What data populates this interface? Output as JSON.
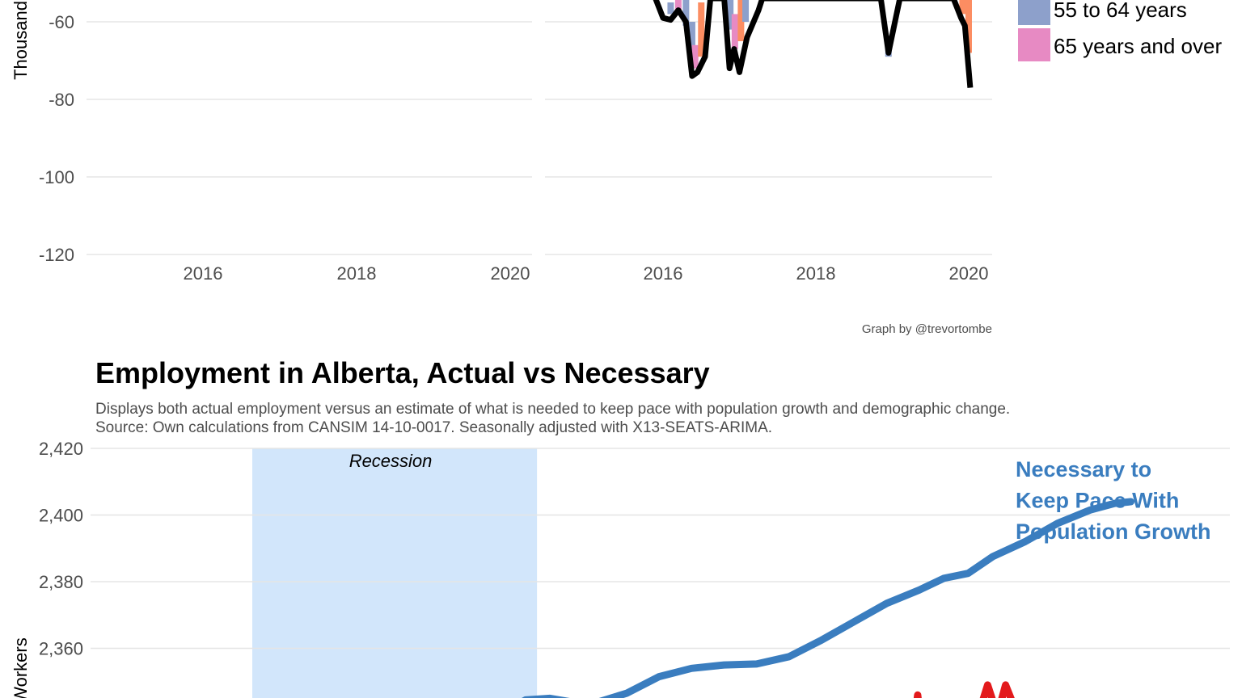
{
  "colors": {
    "grid": "#e5e5e5",
    "bar_55_64": "#8da0cb",
    "bar_65_over": "#e78ac3",
    "bar_orange": "#fc8d62",
    "total_line": "#000000",
    "necessary_line": "#3a7dbf",
    "actual_line": "#e31a1c",
    "recession_fill": "#d2e6fb"
  },
  "chart_data": [
    {
      "type": "area",
      "title": "",
      "ylabel": "Thousand",
      "ylim": [
        -120,
        -50
      ],
      "yticks": [
        {
          "value": -60,
          "label": "-60"
        },
        {
          "value": -80,
          "label": "-80"
        },
        {
          "value": -100,
          "label": "-100"
        },
        {
          "value": -120,
          "label": "-120"
        }
      ],
      "panels": [
        {
          "name": "left",
          "xticks": [
            {
              "value": 2016,
              "label": "2016"
            },
            {
              "value": 2018,
              "label": "2018"
            },
            {
              "value": 2020,
              "label": "2020"
            }
          ],
          "total_line": []
        },
        {
          "name": "right",
          "xticks": [
            {
              "value": 2016,
              "label": "2016"
            },
            {
              "value": 2018,
              "label": "2018"
            },
            {
              "value": 2020,
              "label": "2020"
            }
          ],
          "total_line": [
            {
              "x": 2015.9,
              "y": -50
            },
            {
              "x": 2016.0,
              "y": -59
            },
            {
              "x": 2016.1,
              "y": -59.5
            },
            {
              "x": 2016.2,
              "y": -57
            },
            {
              "x": 2016.3,
              "y": -60
            },
            {
              "x": 2016.38,
              "y": -74
            },
            {
              "x": 2016.45,
              "y": -73
            },
            {
              "x": 2016.55,
              "y": -69
            },
            {
              "x": 2016.62,
              "y": -50
            },
            {
              "x": 2016.8,
              "y": -50
            },
            {
              "x": 2016.87,
              "y": -72
            },
            {
              "x": 2016.93,
              "y": -67
            },
            {
              "x": 2017.0,
              "y": -73
            },
            {
              "x": 2017.1,
              "y": -64
            },
            {
              "x": 2017.25,
              "y": -57
            },
            {
              "x": 2017.3,
              "y": -50
            },
            {
              "x": 2018.85,
              "y": -50
            },
            {
              "x": 2018.95,
              "y": -68
            },
            {
              "x": 2019.1,
              "y": -50
            },
            {
              "x": 2019.8,
              "y": -50
            },
            {
              "x": 2019.9,
              "y": -59
            },
            {
              "x": 2019.95,
              "y": -61
            },
            {
              "x": 2020.02,
              "y": -77
            }
          ],
          "stacked_bars": [
            {
              "x": 2016.1,
              "y_top": -55,
              "y_bottom": -58,
              "series": "55 to 64 years"
            },
            {
              "x": 2016.2,
              "y_top": -54,
              "y_bottom": -57,
              "series": "65 years and over"
            },
            {
              "x": 2016.3,
              "y_top": -53,
              "y_bottom": -61,
              "series": "55 to 64 years"
            },
            {
              "x": 2016.38,
              "y_top": -60,
              "y_bottom": -70,
              "series": "55 to 64 years"
            },
            {
              "x": 2016.42,
              "y_top": -66,
              "y_bottom": -72,
              "series": "65 years and over"
            },
            {
              "x": 2016.5,
              "y_top": -55,
              "y_bottom": -69,
              "series": "orange"
            },
            {
              "x": 2016.88,
              "y_top": -52,
              "y_bottom": -62,
              "series": "55 to 64 years"
            },
            {
              "x": 2016.94,
              "y_top": -58,
              "y_bottom": -67,
              "series": "65 years and over"
            },
            {
              "x": 2017.02,
              "y_top": -54,
              "y_bottom": -65,
              "series": "orange"
            },
            {
              "x": 2017.08,
              "y_top": -52,
              "y_bottom": -60,
              "series": "55 to 64 years"
            },
            {
              "x": 2018.95,
              "y_top": -64,
              "y_bottom": -69,
              "series": "55 to 64 years"
            },
            {
              "x": 2019.92,
              "y_top": -52,
              "y_bottom": -58,
              "series": "orange"
            },
            {
              "x": 2020.0,
              "y_top": -54,
              "y_bottom": -68,
              "series": "orange"
            }
          ]
        }
      ],
      "legend": [
        {
          "label": "55 to 64 years",
          "color": "#8da0cb"
        },
        {
          "label": "65 years and over",
          "color": "#e78ac3"
        }
      ],
      "caption": "Graph by @trevortombe"
    },
    {
      "type": "line",
      "title": "Employment in Alberta, Actual vs Necessary",
      "subtitle_lines": [
        "Displays both actual employment versus an estimate of what is needed to keep pace with population growth and demographic change.",
        "Source: Own calculations from CANSIM 14-10-0017. Seasonally adjusted with X13-SEATS-ARIMA."
      ],
      "ylabel": "Workers",
      "ylim": [
        2340,
        2420
      ],
      "yticks": [
        {
          "value": 2420,
          "label": "2,420"
        },
        {
          "value": 2400,
          "label": "2,400"
        },
        {
          "value": 2380,
          "label": "2,380"
        },
        {
          "value": 2360,
          "label": "2,360"
        }
      ],
      "recession": {
        "label": "Recession",
        "x_start": 2015.0,
        "x_end": 2016.75
      },
      "series": [
        {
          "name": "Necessary to Keep Pace With Population Growth",
          "label_lines": [
            "Necessary to",
            "Keep Pace With",
            "Population Growth"
          ],
          "points": [
            {
              "x": 2016.4,
              "y": 2339
            },
            {
              "x": 2016.55,
              "y": 2341
            },
            {
              "x": 2016.68,
              "y": 2344.5
            },
            {
              "x": 2016.83,
              "y": 2345
            },
            {
              "x": 2016.95,
              "y": 2344
            },
            {
              "x": 2017.1,
              "y": 2343.5
            },
            {
              "x": 2017.3,
              "y": 2346.5
            },
            {
              "x": 2017.5,
              "y": 2351.5
            },
            {
              "x": 2017.7,
              "y": 2354
            },
            {
              "x": 2017.9,
              "y": 2355
            },
            {
              "x": 2018.1,
              "y": 2355.3
            },
            {
              "x": 2018.3,
              "y": 2357.5
            },
            {
              "x": 2018.5,
              "y": 2362.5
            },
            {
              "x": 2018.7,
              "y": 2368
            },
            {
              "x": 2018.9,
              "y": 2373.5
            },
            {
              "x": 2019.1,
              "y": 2377.5
            },
            {
              "x": 2019.25,
              "y": 2381
            },
            {
              "x": 2019.4,
              "y": 2382.5
            },
            {
              "x": 2019.55,
              "y": 2387.5
            },
            {
              "x": 2019.75,
              "y": 2392
            },
            {
              "x": 2019.95,
              "y": 2397.5
            },
            {
              "x": 2020.15,
              "y": 2401.5
            },
            {
              "x": 2020.3,
              "y": 2403.5
            },
            {
              "x": 2020.4,
              "y": 2404
            }
          ]
        },
        {
          "name": "Actual",
          "points": [
            {
              "x": 2019.07,
              "y": 2338
            },
            {
              "x": 2019.09,
              "y": 2346
            },
            {
              "x": 2019.11,
              "y": 2338
            },
            {
              "x": 2019.45,
              "y": 2338
            },
            {
              "x": 2019.52,
              "y": 2349
            },
            {
              "x": 2019.58,
              "y": 2340
            },
            {
              "x": 2019.63,
              "y": 2349
            },
            {
              "x": 2019.72,
              "y": 2338
            },
            {
              "x": 2019.85,
              "y": 2338
            },
            {
              "x": 2019.91,
              "y": 2344
            },
            {
              "x": 2019.96,
              "y": 2338
            }
          ]
        }
      ],
      "caption": ""
    }
  ]
}
